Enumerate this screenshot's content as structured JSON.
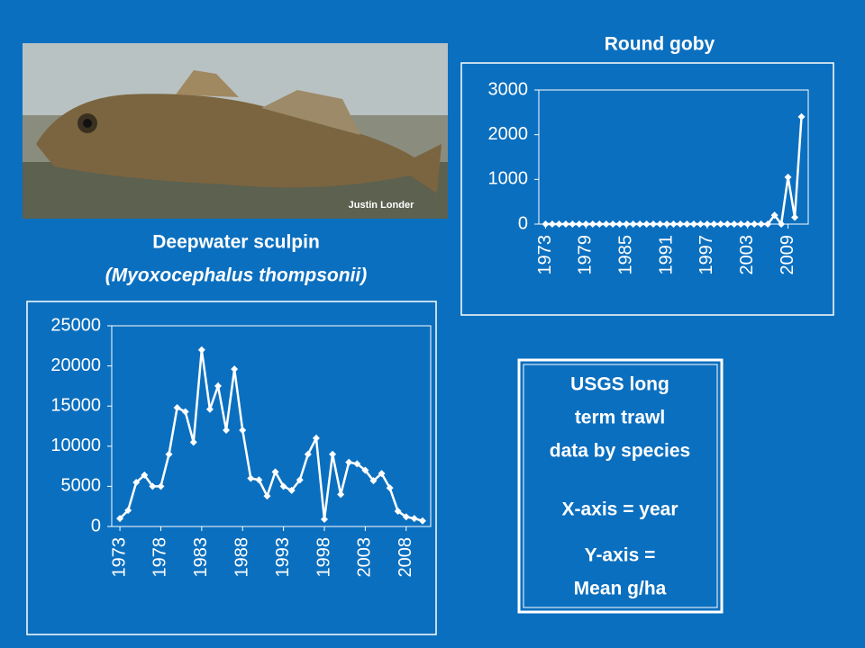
{
  "chart_data": [
    {
      "type": "line",
      "title": "Round goby",
      "color": "#ffffff",
      "x": [
        1973,
        1974,
        1975,
        1976,
        1977,
        1978,
        1979,
        1980,
        1981,
        1982,
        1983,
        1984,
        1985,
        1986,
        1987,
        1988,
        1989,
        1990,
        1991,
        1992,
        1993,
        1994,
        1995,
        1996,
        1997,
        1998,
        1999,
        2000,
        2001,
        2002,
        2003,
        2004,
        2005,
        2006,
        2007,
        2008,
        2009,
        2010,
        2011
      ],
      "values": [
        0,
        0,
        0,
        0,
        0,
        0,
        0,
        0,
        0,
        0,
        0,
        0,
        0,
        0,
        0,
        0,
        0,
        0,
        0,
        0,
        0,
        0,
        0,
        0,
        0,
        0,
        0,
        0,
        0,
        0,
        0,
        0,
        0,
        0,
        200,
        0,
        1050,
        150,
        2400
      ],
      "xlim": [
        1972,
        2012
      ],
      "xticks": [
        1973,
        1979,
        1985,
        1991,
        1997,
        2003,
        2009
      ],
      "ylim": [
        0,
        3000
      ],
      "yticks": [
        0,
        1000,
        2000,
        3000
      ]
    },
    {
      "type": "line",
      "color": "#ffffff",
      "x": [
        1973,
        1974,
        1975,
        1976,
        1977,
        1978,
        1979,
        1980,
        1981,
        1982,
        1983,
        1984,
        1985,
        1986,
        1987,
        1988,
        1989,
        1990,
        1991,
        1992,
        1993,
        1994,
        1995,
        1996,
        1997,
        1998,
        1999,
        2000,
        2001,
        2002,
        2003,
        2004,
        2005,
        2006,
        2007,
        2008,
        2009,
        2010
      ],
      "values": [
        1000,
        2000,
        5500,
        6400,
        5000,
        5000,
        9000,
        14800,
        14300,
        10500,
        22000,
        14600,
        17500,
        12000,
        19600,
        12000,
        6000,
        5800,
        3800,
        6800,
        5000,
        4500,
        5800,
        9000,
        11000,
        900,
        9000,
        4000,
        8000,
        7800,
        7000,
        5700,
        6600,
        4800,
        1900,
        1200,
        1000,
        700
      ],
      "xlim": [
        1972,
        2011
      ],
      "xticks": [
        1973,
        1978,
        1983,
        1988,
        1993,
        1998,
        2003,
        2008
      ],
      "ylim": [
        0,
        25000
      ],
      "yticks": [
        0,
        5000,
        10000,
        15000,
        20000,
        25000
      ]
    }
  ],
  "photo_credit": "Justin Londer",
  "caption": {
    "common_name": "Deepwater sculpin",
    "latin_name": "(Myoxocephalus thompsonii)"
  },
  "info_box": {
    "title_lines": [
      "USGS long",
      "term trawl",
      "data by species"
    ],
    "x_axis": "X-axis = year",
    "y_axis_lines": [
      "Y-axis =",
      "Mean g/ha"
    ]
  }
}
